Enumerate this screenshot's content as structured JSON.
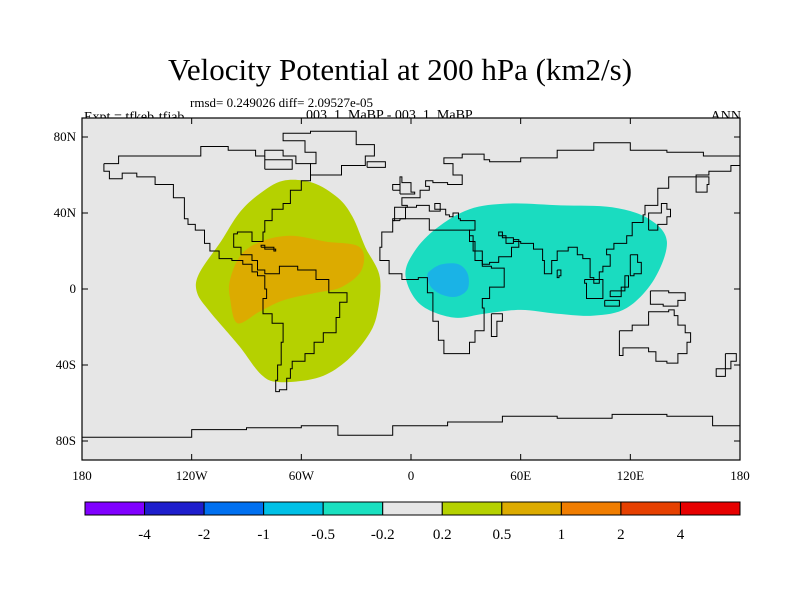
{
  "title": "Velocity Potential at 200 hPa (km2/s)",
  "stats": "rmsd= 0.249026 diff= 2.09527e-05",
  "experiment": "Expt = tfkeb-tfjab",
  "case": "003_1_MaBP - 003_1_MaBP",
  "season": "ANN",
  "map": {
    "background_color": "#e6e6e6",
    "lat_range": [
      -90,
      90
    ],
    "lon_range": [
      -180,
      180
    ],
    "lat_ticks": [
      {
        "value": 80,
        "label": "80N"
      },
      {
        "value": 40,
        "label": "40N"
      },
      {
        "value": 0,
        "label": "0"
      },
      {
        "value": -40,
        "label": "40S"
      },
      {
        "value": -80,
        "label": "80S"
      }
    ],
    "lon_ticks": [
      {
        "value": -180,
        "label": "180"
      },
      {
        "value": -120,
        "label": "120W"
      },
      {
        "value": -60,
        "label": "60W"
      },
      {
        "value": 0,
        "label": "0"
      },
      {
        "value": 60,
        "label": "60E"
      },
      {
        "value": 120,
        "label": "120E"
      },
      {
        "value": 180,
        "label": "180"
      }
    ],
    "fields": [
      {
        "name": "positive-0.2-0.5",
        "color": "#b5d100",
        "polygon": [
          [
            -117,
            -2
          ],
          [
            -116,
            8
          ],
          [
            -104,
            25
          ],
          [
            -94,
            40
          ],
          [
            -83,
            50
          ],
          [
            -70,
            57
          ],
          [
            -54,
            56
          ],
          [
            -40,
            48
          ],
          [
            -32,
            38
          ],
          [
            -25,
            22
          ],
          [
            -17,
            6
          ],
          [
            -19,
            -15
          ],
          [
            -26,
            -28
          ],
          [
            -38,
            -40
          ],
          [
            -52,
            -47
          ],
          [
            -72,
            -49
          ],
          [
            -82,
            -45
          ],
          [
            -94,
            -30
          ],
          [
            -110,
            -12
          ]
        ]
      },
      {
        "name": "positive-0.5-1",
        "color": "#dcab00",
        "polygon": [
          [
            -99,
            -5
          ],
          [
            -99,
            5
          ],
          [
            -93,
            18
          ],
          [
            -82,
            25
          ],
          [
            -66,
            28
          ],
          [
            -47,
            25
          ],
          [
            -28,
            22
          ],
          [
            -27,
            10
          ],
          [
            -38,
            1
          ],
          [
            -52,
            -2
          ],
          [
            -70,
            -6
          ],
          [
            -83,
            -12
          ],
          [
            -95,
            -18
          ]
        ]
      },
      {
        "name": "negative-0.2-0.5",
        "color": "#1adcc0",
        "polygon": [
          [
            -3,
            7
          ],
          [
            2,
            20
          ],
          [
            14,
            32
          ],
          [
            32,
            42
          ],
          [
            54,
            45
          ],
          [
            82,
            44
          ],
          [
            110,
            43
          ],
          [
            130,
            37
          ],
          [
            140,
            25
          ],
          [
            133,
            5
          ],
          [
            118,
            -10
          ],
          [
            100,
            -14
          ],
          [
            80,
            -13
          ],
          [
            60,
            -11
          ],
          [
            40,
            -13
          ],
          [
            23,
            -15
          ],
          [
            5,
            -8
          ]
        ]
      },
      {
        "name": "negative-0.5-1",
        "color": "#1ab3e6",
        "polygon": [
          [
            9,
            7
          ],
          [
            11,
            10
          ],
          [
            17,
            13
          ],
          [
            26,
            13
          ],
          [
            31,
            8
          ],
          [
            31,
            0
          ],
          [
            25,
            -4
          ],
          [
            17,
            -3
          ],
          [
            11,
            1
          ]
        ]
      }
    ],
    "coastlines": [
      [
        [
          -168,
          66
        ],
        [
          -160,
          70
        ],
        [
          -145,
          70
        ],
        [
          -130,
          70
        ],
        [
          -115,
          75
        ],
        [
          -100,
          73
        ],
        [
          -85,
          70
        ],
        [
          -80,
          73
        ],
        [
          -70,
          70
        ],
        [
          -63,
          66
        ],
        [
          -55,
          57
        ],
        [
          -60,
          52
        ],
        [
          -66,
          45
        ],
        [
          -70,
          42
        ],
        [
          -76,
          36
        ],
        [
          -80,
          30
        ],
        [
          -81,
          25
        ],
        [
          -87,
          30
        ],
        [
          -95,
          29
        ],
        [
          -97,
          22
        ],
        [
          -93,
          18
        ],
        [
          -87,
          15
        ],
        [
          -84,
          10
        ],
        [
          -80,
          8
        ],
        [
          -77,
          8
        ],
        [
          -72,
          12
        ],
        [
          -62,
          10
        ],
        [
          -52,
          5
        ],
        [
          -45,
          -2
        ],
        [
          -35,
          -7
        ],
        [
          -39,
          -15
        ],
        [
          -41,
          -23
        ],
        [
          -48,
          -28
        ],
        [
          -53,
          -34
        ],
        [
          -58,
          -38
        ],
        [
          -65,
          -42
        ],
        [
          -66,
          -47
        ],
        [
          -68,
          -53
        ],
        [
          -72,
          -54
        ],
        [
          -74,
          -48
        ],
        [
          -73,
          -40
        ],
        [
          -71,
          -28
        ],
        [
          -70,
          -18
        ],
        [
          -76,
          -13
        ],
        [
          -81,
          -5
        ],
        [
          -79,
          0
        ],
        [
          -80,
          7
        ],
        [
          -84,
          9
        ],
        [
          -87,
          13
        ],
        [
          -92,
          15
        ],
        [
          -98,
          16
        ],
        [
          -105,
          20
        ],
        [
          -110,
          24
        ],
        [
          -113,
          31
        ],
        [
          -118,
          34
        ],
        [
          -122,
          37
        ],
        [
          -124,
          42
        ],
        [
          -124,
          48
        ],
        [
          -130,
          55
        ],
        [
          -140,
          59
        ],
        [
          -150,
          61
        ],
        [
          -158,
          58
        ],
        [
          -165,
          62
        ],
        [
          -168,
          66
        ]
      ],
      [
        [
          -55,
          60
        ],
        [
          -45,
          60
        ],
        [
          -38,
          65
        ],
        [
          -25,
          70
        ],
        [
          -20,
          76
        ],
        [
          -30,
          83
        ],
        [
          -55,
          82
        ],
        [
          -70,
          78
        ],
        [
          -58,
          72
        ],
        [
          -52,
          66
        ],
        [
          -55,
          60
        ]
      ],
      [
        [
          -10,
          36
        ],
        [
          -9,
          43
        ],
        [
          -2,
          44
        ],
        [
          -5,
          48
        ],
        [
          5,
          52
        ],
        [
          10,
          54
        ],
        [
          8,
          57
        ],
        [
          12,
          56
        ],
        [
          20,
          55
        ],
        [
          28,
          60
        ],
        [
          23,
          66
        ],
        [
          18,
          69
        ],
        [
          28,
          71
        ],
        [
          40,
          68
        ],
        [
          43,
          67
        ],
        [
          60,
          69
        ],
        [
          80,
          73
        ],
        [
          100,
          77
        ],
        [
          120,
          73
        ],
        [
          140,
          72
        ],
        [
          160,
          70
        ],
        [
          180,
          68
        ]
      ],
      [
        [
          180,
          65
        ],
        [
          175,
          62
        ],
        [
          163,
          60
        ],
        [
          156,
          57
        ],
        [
          156,
          51
        ],
        [
          162,
          55
        ],
        [
          163,
          59
        ],
        [
          150,
          59
        ],
        [
          141,
          53
        ],
        [
          135,
          44
        ],
        [
          128,
          39
        ],
        [
          127,
          35
        ],
        [
          121,
          31
        ],
        [
          121,
          28
        ],
        [
          118,
          24
        ],
        [
          111,
          21
        ],
        [
          107,
          18
        ],
        [
          109,
          12
        ],
        [
          105,
          9
        ],
        [
          103,
          3
        ],
        [
          100,
          6
        ],
        [
          98,
          10
        ],
        [
          98,
          16
        ],
        [
          94,
          18
        ],
        [
          91,
          22
        ],
        [
          86,
          20
        ],
        [
          80,
          15
        ],
        [
          77,
          8
        ],
        [
          73,
          15
        ],
        [
          72,
          21
        ],
        [
          67,
          24
        ],
        [
          60,
          25
        ],
        [
          56,
          27
        ],
        [
          50,
          30
        ],
        [
          48,
          28
        ],
        [
          52,
          24
        ],
        [
          56,
          26
        ],
        [
          59,
          22
        ],
        [
          55,
          17
        ],
        [
          48,
          14
        ],
        [
          43,
          13
        ],
        [
          39,
          20
        ],
        [
          34,
          28
        ],
        [
          32,
          31
        ],
        [
          35,
          36
        ],
        [
          27,
          37
        ],
        [
          26,
          40
        ],
        [
          23,
          38
        ],
        [
          21,
          39
        ],
        [
          19,
          42
        ],
        [
          13,
          45
        ],
        [
          16,
          41
        ],
        [
          10,
          44
        ],
        [
          3,
          43
        ],
        [
          -3,
          37
        ],
        [
          -10,
          36
        ]
      ],
      [
        [
          -6,
          36
        ],
        [
          -10,
          30
        ],
        [
          -16,
          22
        ],
        [
          -17,
          15
        ],
        [
          -12,
          8
        ],
        [
          -5,
          5
        ],
        [
          4,
          6
        ],
        [
          9,
          4
        ],
        [
          9,
          -2
        ],
        [
          12,
          -8
        ],
        [
          12,
          -17
        ],
        [
          15,
          -27
        ],
        [
          18,
          -34
        ],
        [
          25,
          -34
        ],
        [
          32,
          -28
        ],
        [
          35,
          -22
        ],
        [
          40,
          -16
        ],
        [
          40,
          -10
        ],
        [
          39,
          -5
        ],
        [
          43,
          1
        ],
        [
          51,
          11
        ],
        [
          44,
          12
        ],
        [
          39,
          15
        ],
        [
          35,
          25
        ],
        [
          32,
          31
        ],
        [
          20,
          31
        ],
        [
          10,
          37
        ],
        [
          -6,
          36
        ]
      ],
      [
        [
          44,
          -13
        ],
        [
          48,
          -13
        ],
        [
          50,
          -17
        ],
        [
          47,
          -25
        ],
        [
          44,
          -24
        ],
        [
          44,
          -13
        ]
      ],
      [
        [
          114,
          -22
        ],
        [
          121,
          -19
        ],
        [
          130,
          -12
        ],
        [
          137,
          -12
        ],
        [
          141,
          -11
        ],
        [
          144,
          -14
        ],
        [
          146,
          -19
        ],
        [
          150,
          -23
        ],
        [
          153,
          -28
        ],
        [
          151,
          -34
        ],
        [
          146,
          -39
        ],
        [
          140,
          -38
        ],
        [
          134,
          -33
        ],
        [
          130,
          -31
        ],
        [
          116,
          -35
        ],
        [
          114,
          -26
        ],
        [
          114,
          -22
        ]
      ],
      [
        [
          -180,
          -78
        ],
        [
          -150,
          -78
        ],
        [
          -120,
          -74
        ],
        [
          -90,
          -73
        ],
        [
          -60,
          -72
        ],
        [
          -40,
          -77
        ],
        [
          -10,
          -72
        ],
        [
          20,
          -70
        ],
        [
          50,
          -67
        ],
        [
          80,
          -68
        ],
        [
          110,
          -66
        ],
        [
          140,
          -67
        ],
        [
          165,
          -72
        ],
        [
          180,
          -77
        ]
      ],
      [
        [
          -6,
          50
        ],
        [
          2,
          51
        ],
        [
          0,
          56
        ],
        [
          -5,
          59
        ],
        [
          -6,
          55
        ],
        [
          -6,
          50
        ]
      ],
      [
        [
          -10,
          52
        ],
        [
          -6,
          52
        ],
        [
          -6,
          55
        ],
        [
          -10,
          54
        ],
        [
          -10,
          52
        ]
      ],
      [
        [
          -24,
          64
        ],
        [
          -14,
          64
        ],
        [
          -14,
          67
        ],
        [
          -24,
          66
        ],
        [
          -24,
          64
        ]
      ],
      [
        [
          130,
          31
        ],
        [
          135,
          34
        ],
        [
          140,
          38
        ],
        [
          142,
          42
        ],
        [
          140,
          45
        ],
        [
          137,
          40
        ],
        [
          130,
          33
        ],
        [
          130,
          31
        ]
      ],
      [
        [
          95,
          5
        ],
        [
          105,
          -5
        ],
        [
          103,
          -5
        ],
        [
          96,
          3
        ],
        [
          95,
          5
        ]
      ],
      [
        [
          109,
          -1
        ],
        [
          117,
          7
        ],
        [
          119,
          1
        ],
        [
          115,
          -4
        ],
        [
          109,
          -1
        ]
      ],
      [
        [
          131,
          -1
        ],
        [
          141,
          -2
        ],
        [
          150,
          -6
        ],
        [
          146,
          -9
        ],
        [
          138,
          -8
        ],
        [
          131,
          -1
        ]
      ],
      [
        [
          106,
          -6
        ],
        [
          114,
          -8
        ],
        [
          114,
          -9
        ],
        [
          106,
          -8
        ],
        [
          106,
          -6
        ]
      ],
      [
        [
          120,
          18
        ],
        [
          124,
          14
        ],
        [
          126,
          8
        ],
        [
          122,
          7
        ],
        [
          120,
          18
        ]
      ],
      [
        [
          172,
          -34
        ],
        [
          178,
          -38
        ],
        [
          175,
          -42
        ],
        [
          167,
          -46
        ],
        [
          172,
          -41
        ],
        [
          172,
          -34
        ]
      ],
      [
        [
          -82,
          22
        ],
        [
          -75,
          20
        ],
        [
          -74,
          21
        ],
        [
          -80,
          23
        ],
        [
          -82,
          22
        ]
      ],
      [
        [
          -80,
          63
        ],
        [
          -70,
          63
        ],
        [
          -65,
          68
        ],
        [
          -80,
          70
        ],
        [
          -80,
          63
        ]
      ],
      [
        [
          80,
          10
        ],
        [
          82,
          7
        ],
        [
          81,
          6
        ],
        [
          80,
          10
        ]
      ]
    ]
  },
  "colorbar": {
    "colors": [
      "#8000ff",
      "#1e1ecc",
      "#0070f0",
      "#00c0e6",
      "#1ae0c0",
      "#e6e6e6",
      "#b5d100",
      "#dcab00",
      "#f07d00",
      "#e64000",
      "#e60000"
    ],
    "labels": [
      "-4",
      "-2",
      "-1",
      "-0.5",
      "-0.2",
      "0.2",
      "0.5",
      "1",
      "2",
      "4"
    ]
  }
}
